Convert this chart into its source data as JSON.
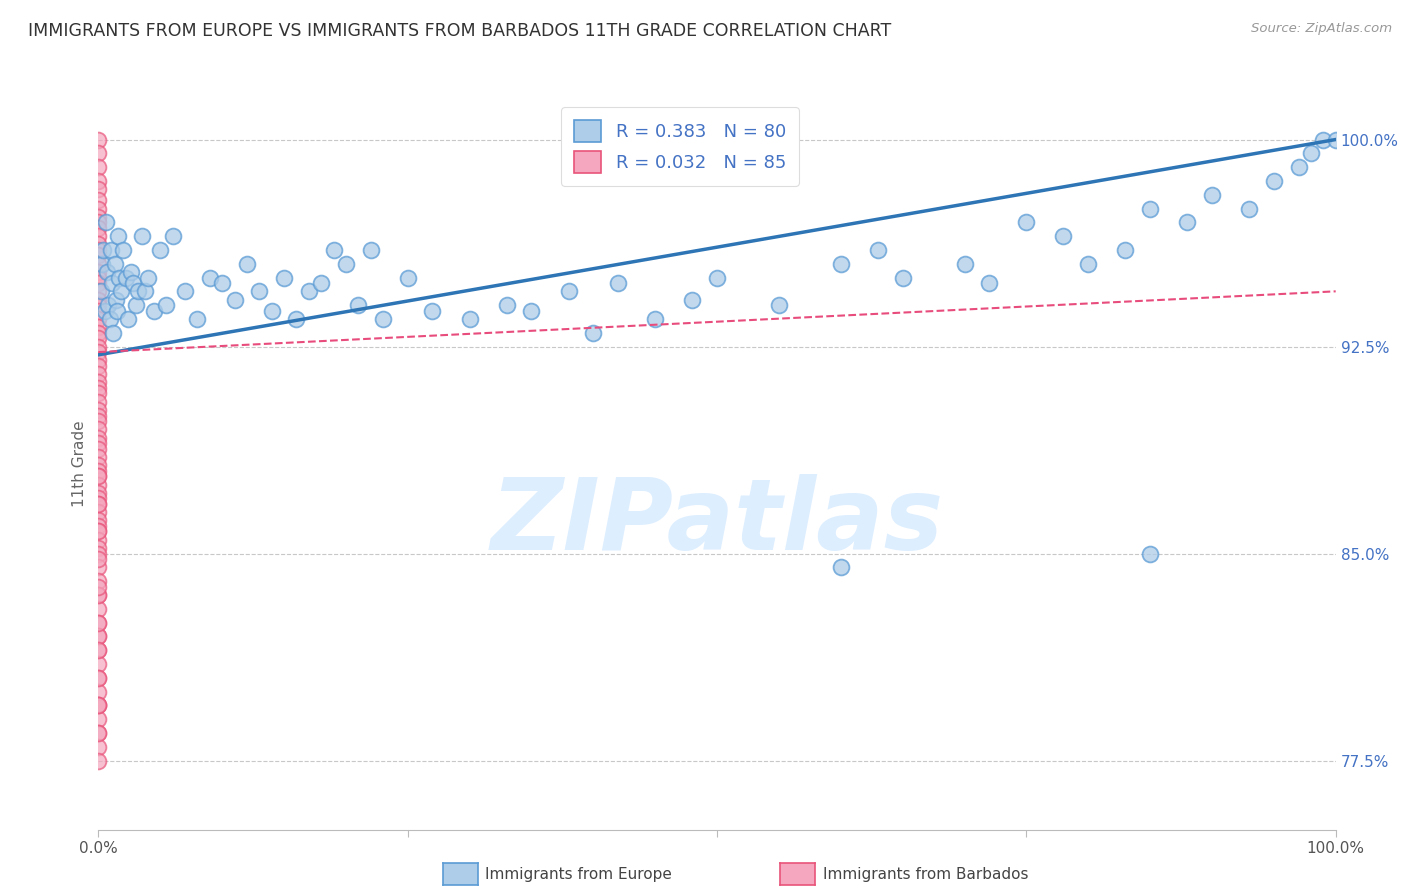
{
  "title": "IMMIGRANTS FROM EUROPE VS IMMIGRANTS FROM BARBADOS 11TH GRADE CORRELATION CHART",
  "source": "Source: ZipAtlas.com",
  "ylabel": "11th Grade",
  "xlim": [
    0.0,
    100.0
  ],
  "ylim": [
    75.0,
    101.5
  ],
  "y_tick_labels": [
    "77.5%",
    "85.0%",
    "92.5%",
    "100.0%"
  ],
  "y_tick_positions": [
    77.5,
    85.0,
    92.5,
    100.0
  ],
  "legend_europe_label": "Immigrants from Europe",
  "legend_barbados_label": "Immigrants from Barbados",
  "blue_face_color": "#aecde8",
  "blue_edge_color": "#5b9bd5",
  "pink_face_color": "#f4a7be",
  "pink_edge_color": "#e8547a",
  "blue_line_color": "#2e75b6",
  "pink_line_color": "#e84c7d",
  "watermark_text": "ZIPatlas",
  "watermark_color": "#ddeeff",
  "grid_color": "#c8c8c8",
  "title_color": "#333333",
  "axis_label_color": "#666666",
  "right_tick_color": "#4472c4",
  "europe_x": [
    0.2,
    0.3,
    0.4,
    0.5,
    0.6,
    0.7,
    0.8,
    0.9,
    1.0,
    1.1,
    1.2,
    1.3,
    1.4,
    1.5,
    1.6,
    1.7,
    1.8,
    2.0,
    2.2,
    2.4,
    2.6,
    2.8,
    3.0,
    3.2,
    3.5,
    3.8,
    4.0,
    4.5,
    5.0,
    5.5,
    6.0,
    7.0,
    8.0,
    9.0,
    10.0,
    11.0,
    12.0,
    13.0,
    14.0,
    15.0,
    16.0,
    17.0,
    18.0,
    19.0,
    20.0,
    21.0,
    22.0,
    23.0,
    25.0,
    27.0,
    30.0,
    33.0,
    35.0,
    38.0,
    40.0,
    42.0,
    45.0,
    48.0,
    50.0,
    55.0,
    60.0,
    63.0,
    65.0,
    70.0,
    72.0,
    75.0,
    78.0,
    80.0,
    83.0,
    85.0,
    88.0,
    90.0,
    93.0,
    95.0,
    97.0,
    98.0,
    99.0,
    100.0,
    60.0,
    85.0
  ],
  "europe_y": [
    94.5,
    95.5,
    96.0,
    93.8,
    97.0,
    95.2,
    94.0,
    93.5,
    96.0,
    94.8,
    93.0,
    95.5,
    94.2,
    93.8,
    96.5,
    95.0,
    94.5,
    96.0,
    95.0,
    93.5,
    95.2,
    94.8,
    94.0,
    94.5,
    96.5,
    94.5,
    95.0,
    93.8,
    96.0,
    94.0,
    96.5,
    94.5,
    93.5,
    95.0,
    94.8,
    94.2,
    95.5,
    94.5,
    93.8,
    95.0,
    93.5,
    94.5,
    94.8,
    96.0,
    95.5,
    94.0,
    96.0,
    93.5,
    95.0,
    93.8,
    93.5,
    94.0,
    93.8,
    94.5,
    93.0,
    94.8,
    93.5,
    94.2,
    95.0,
    94.0,
    95.5,
    96.0,
    95.0,
    95.5,
    94.8,
    97.0,
    96.5,
    95.5,
    96.0,
    97.5,
    97.0,
    98.0,
    97.5,
    98.5,
    99.0,
    99.5,
    100.0,
    100.0,
    84.5,
    85.0
  ],
  "barbados_x": [
    0.0,
    0.0,
    0.0,
    0.0,
    0.0,
    0.0,
    0.0,
    0.0,
    0.0,
    0.0,
    0.0,
    0.0,
    0.0,
    0.0,
    0.0,
    0.0,
    0.0,
    0.0,
    0.0,
    0.0,
    0.0,
    0.0,
    0.0,
    0.0,
    0.0,
    0.0,
    0.0,
    0.0,
    0.0,
    0.0,
    0.0,
    0.0,
    0.0,
    0.0,
    0.0,
    0.0,
    0.0,
    0.0,
    0.0,
    0.0,
    0.0,
    0.0,
    0.0,
    0.0,
    0.0,
    0.0,
    0.0,
    0.0,
    0.0,
    0.0,
    0.0,
    0.0,
    0.0,
    0.0,
    0.0,
    0.0,
    0.0,
    0.0,
    0.0,
    0.0,
    0.0,
    0.0,
    0.0,
    0.0,
    0.0,
    0.0,
    0.0,
    0.0,
    0.0,
    0.0,
    0.0,
    0.0,
    0.0,
    0.0,
    0.0,
    0.0,
    0.0,
    0.0,
    0.0,
    0.0,
    0.0,
    0.0,
    0.0,
    0.0,
    0.0
  ],
  "barbados_y": [
    100.0,
    99.5,
    99.0,
    98.5,
    98.2,
    97.8,
    97.5,
    97.2,
    97.0,
    96.8,
    96.5,
    96.2,
    96.0,
    95.8,
    95.5,
    95.2,
    95.0,
    94.8,
    94.5,
    94.2,
    94.0,
    93.8,
    93.5,
    93.2,
    93.0,
    92.8,
    92.5,
    92.3,
    92.0,
    91.8,
    91.5,
    91.2,
    91.0,
    90.8,
    90.5,
    90.2,
    90.0,
    89.8,
    89.5,
    89.2,
    89.0,
    88.8,
    88.5,
    88.2,
    88.0,
    87.8,
    87.5,
    87.2,
    87.0,
    86.8,
    86.5,
    86.2,
    86.0,
    85.8,
    85.5,
    85.2,
    85.0,
    84.5,
    84.0,
    83.5,
    83.0,
    82.5,
    82.0,
    81.5,
    81.0,
    80.5,
    80.0,
    79.5,
    79.0,
    78.5,
    78.0,
    77.5,
    82.0,
    83.5,
    79.5,
    80.5,
    81.5,
    82.5,
    83.8,
    84.8,
    85.8,
    86.8,
    87.8,
    78.5,
    79.5
  ],
  "europe_trend_x": [
    0.0,
    100.0
  ],
  "europe_trend_y": [
    92.2,
    100.0
  ],
  "barbados_trend_x": [
    0.0,
    100.0
  ],
  "barbados_trend_y": [
    92.3,
    94.5
  ]
}
